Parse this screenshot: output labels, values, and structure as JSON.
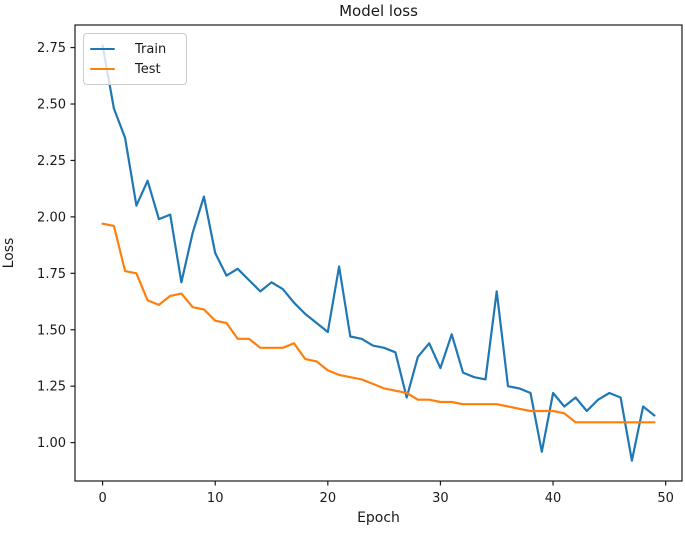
{
  "chart_data": {
    "type": "line",
    "title": "Model loss",
    "xlabel": "Epoch",
    "ylabel": "Loss",
    "grid": false,
    "legend_position": "upper left",
    "xlim": [
      -2.45,
      51.45
    ],
    "ylim": [
      0.83,
      2.85
    ],
    "xticks": [
      "0",
      "10",
      "20",
      "30",
      "40",
      "50"
    ],
    "yticks": [
      "1.00",
      "1.25",
      "1.50",
      "1.75",
      "2.00",
      "2.25",
      "2.50",
      "2.75"
    ],
    "x": [
      0,
      1,
      2,
      3,
      4,
      5,
      6,
      7,
      8,
      9,
      10,
      11,
      12,
      13,
      14,
      15,
      16,
      17,
      18,
      19,
      20,
      21,
      22,
      23,
      24,
      25,
      26,
      27,
      28,
      29,
      30,
      31,
      32,
      33,
      34,
      35,
      36,
      37,
      38,
      39,
      40,
      41,
      42,
      43,
      44,
      45,
      46,
      47,
      48,
      49
    ],
    "series": [
      {
        "name": "Train",
        "color": "#1f77b4",
        "values": [
          2.76,
          2.48,
          2.35,
          2.05,
          2.16,
          1.99,
          2.01,
          1.71,
          1.93,
          2.09,
          1.84,
          1.74,
          1.77,
          1.72,
          1.67,
          1.71,
          1.68,
          1.62,
          1.57,
          1.53,
          1.49,
          1.78,
          1.47,
          1.46,
          1.43,
          1.42,
          1.4,
          1.2,
          1.38,
          1.44,
          1.33,
          1.48,
          1.31,
          1.29,
          1.28,
          1.67,
          1.25,
          1.24,
          1.22,
          0.96,
          1.22,
          1.16,
          1.2,
          1.14,
          1.19,
          1.22,
          1.2,
          0.92,
          1.16,
          1.12
        ]
      },
      {
        "name": "Test",
        "color": "#ff7f0e",
        "values": [
          1.97,
          1.96,
          1.76,
          1.75,
          1.63,
          1.61,
          1.65,
          1.66,
          1.6,
          1.59,
          1.54,
          1.53,
          1.46,
          1.46,
          1.42,
          1.42,
          1.42,
          1.44,
          1.37,
          1.36,
          1.32,
          1.3,
          1.29,
          1.28,
          1.26,
          1.24,
          1.23,
          1.22,
          1.19,
          1.19,
          1.18,
          1.18,
          1.17,
          1.17,
          1.17,
          1.17,
          1.16,
          1.15,
          1.14,
          1.14,
          1.14,
          1.13,
          1.09,
          1.09,
          1.09,
          1.09,
          1.09,
          1.09,
          1.09,
          1.09
        ]
      }
    ]
  },
  "style": {
    "spine_color": "#1a1a1a",
    "tick_label_color": "#1a1a1a",
    "line_width": 2.2
  }
}
